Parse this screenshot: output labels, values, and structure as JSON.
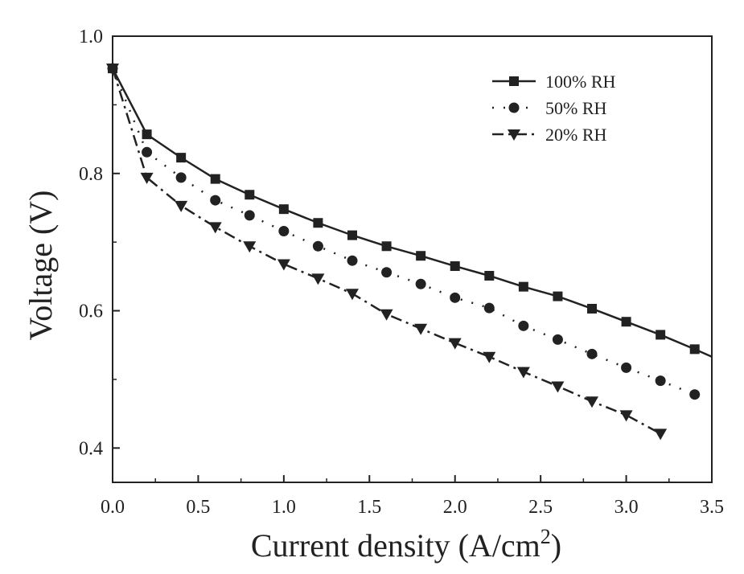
{
  "chart_data": {
    "type": "line",
    "title": "",
    "xlabel": "Current density (A/cm",
    "xlabel_superscript": "2",
    "xlabel_suffix": ")",
    "ylabel": "Voltage (V)",
    "xlim": [
      0.0,
      3.5
    ],
    "ylim": [
      0.35,
      1.0
    ],
    "xticks": [
      0.0,
      0.5,
      1.0,
      1.5,
      2.0,
      2.5,
      3.0,
      3.5
    ],
    "xtick_labels": [
      "0.0",
      "0.5",
      "1.0",
      "1.5",
      "2.0",
      "2.5",
      "3.0",
      "3.5"
    ],
    "yticks": [
      0.4,
      0.6,
      0.8,
      1.0
    ],
    "ytick_labels": [
      "0.4",
      "0.6",
      "0.8",
      "1.0"
    ],
    "grid": false,
    "legend_position": "top-right",
    "series": [
      {
        "name": "100% RH",
        "line_style": "solid",
        "marker": "square",
        "x": [
          0.0,
          0.2,
          0.4,
          0.6,
          0.8,
          1.0,
          1.2,
          1.4,
          1.6,
          1.8,
          2.0,
          2.2,
          2.4,
          2.6,
          2.8,
          3.0,
          3.2,
          3.4
        ],
        "y": [
          0.953,
          0.857,
          0.823,
          0.792,
          0.769,
          0.748,
          0.728,
          0.71,
          0.694,
          0.68,
          0.665,
          0.651,
          0.635,
          0.621,
          0.603,
          0.584,
          0.565,
          0.544
        ],
        "line_extends_to": [
          3.5,
          0.533
        ]
      },
      {
        "name": "50% RH",
        "line_style": "dotted",
        "marker": "circle",
        "x": [
          0.0,
          0.2,
          0.4,
          0.6,
          0.8,
          1.0,
          1.2,
          1.4,
          1.6,
          1.8,
          2.0,
          2.2,
          2.4,
          2.6,
          2.8,
          3.0,
          3.2,
          3.4
        ],
        "y": [
          0.953,
          0.831,
          0.794,
          0.761,
          0.739,
          0.716,
          0.694,
          0.673,
          0.656,
          0.639,
          0.619,
          0.604,
          0.578,
          0.558,
          0.537,
          0.517,
          0.498,
          0.478
        ]
      },
      {
        "name": "20% RH",
        "line_style": "dash-dot",
        "marker": "triangle-down",
        "x": [
          0.0,
          0.2,
          0.4,
          0.6,
          0.8,
          1.0,
          1.2,
          1.4,
          1.6,
          1.8,
          2.0,
          2.2,
          2.4,
          2.6,
          2.8,
          3.0,
          3.2
        ],
        "y": [
          0.953,
          0.794,
          0.753,
          0.722,
          0.694,
          0.668,
          0.647,
          0.625,
          0.595,
          0.574,
          0.553,
          0.533,
          0.511,
          0.49,
          0.468,
          0.448,
          0.421
        ]
      }
    ]
  }
}
